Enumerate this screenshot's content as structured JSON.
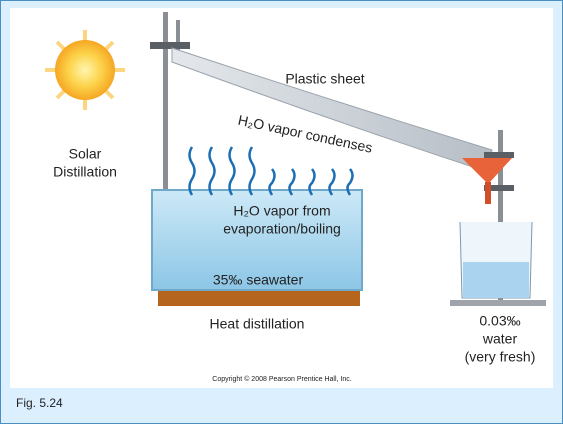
{
  "figure": {
    "solar_label": [
      "Solar",
      "Distillation"
    ],
    "sheet_label": "Plastic sheet",
    "condense_label": "H₂O vapor condenses",
    "vapor_label": [
      "H₂O vapor from",
      "evaporation/boiling"
    ],
    "seawater_label": "35‰ seawater",
    "heat_label": "Heat distillation",
    "fresh_label": [
      "0.03‰",
      "water",
      "(very fresh)"
    ],
    "copyright": "Copyright © 2008 Pearson Prentice Hall, Inc."
  },
  "caption": "Fig. 5.24"
}
